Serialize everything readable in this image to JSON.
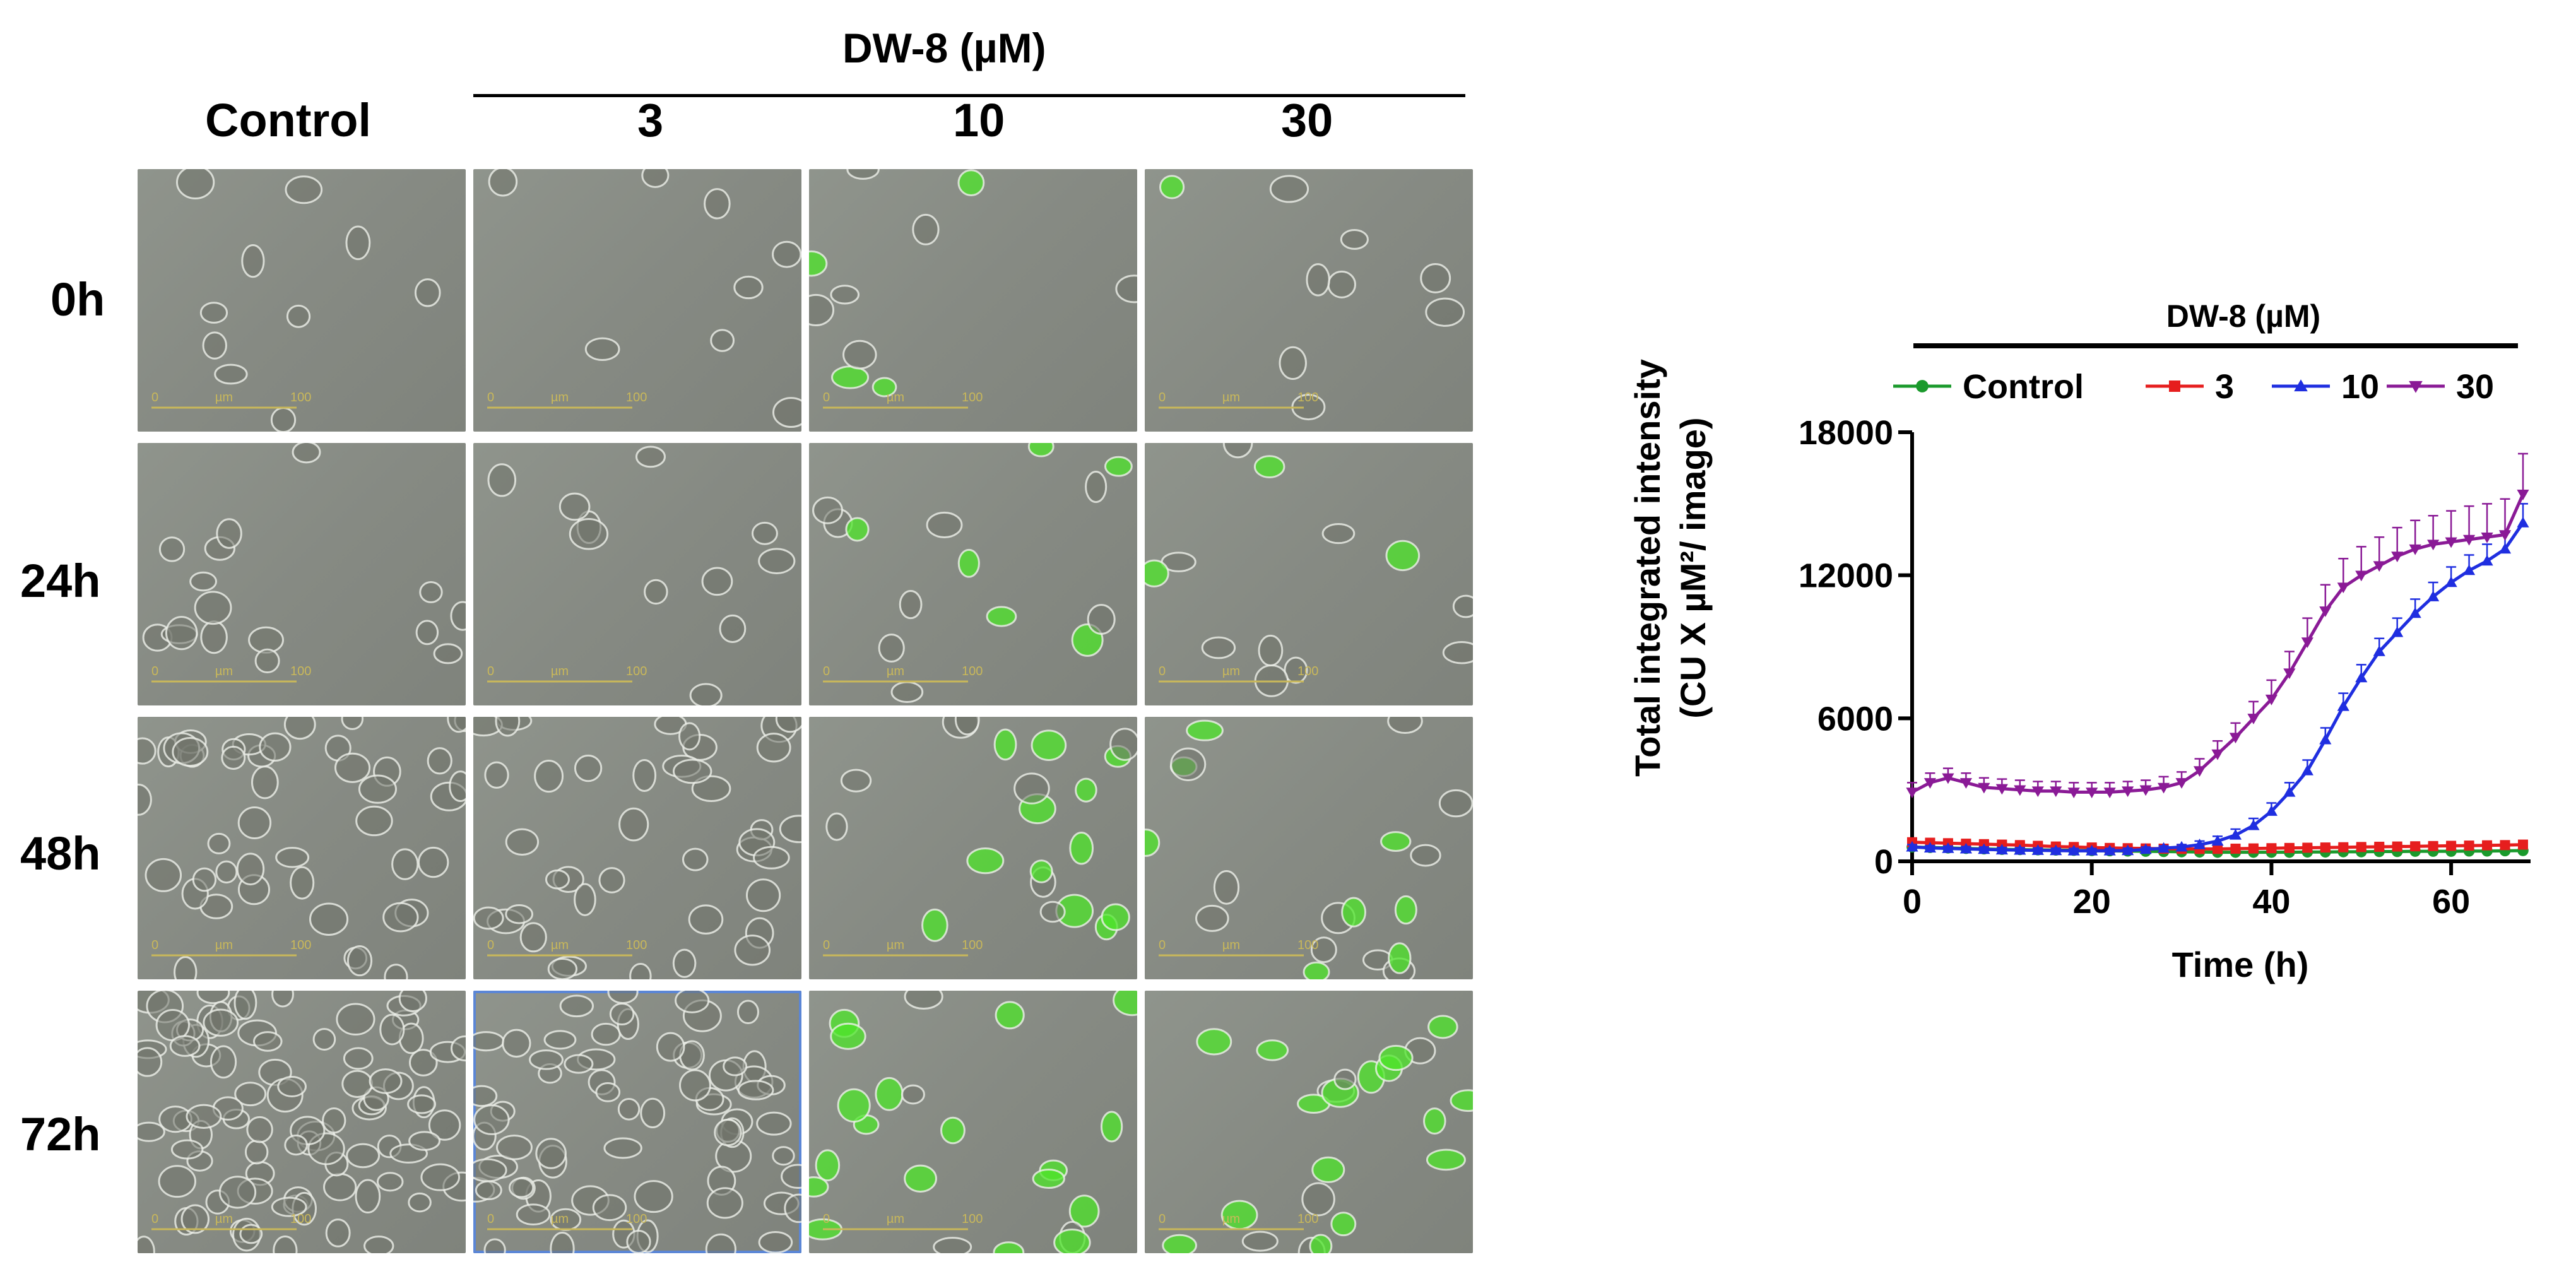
{
  "figure": {
    "treatment_header": "DW-8 (µM)",
    "column_labels": [
      "Control",
      "3",
      "10",
      "30"
    ],
    "row_labels": [
      "0h",
      "24h",
      "48h",
      "72h"
    ],
    "scale_bar": {
      "unit": "µm",
      "start": "0",
      "end": "100"
    },
    "selected_panel": {
      "row": "72h",
      "column": "3"
    },
    "colors": {
      "cell_fill": "#6f7369",
      "cell_outline": "#eef0ea",
      "fluorescence": "#4ee62a",
      "scale_bar": "#c9b85a",
      "selection": "#5b86d6"
    }
  },
  "chart_data": {
    "type": "line",
    "header": "DW-8 (µM)",
    "xlabel": "Time (h)",
    "ylabel_line1": "Total integrated intensity",
    "ylabel_line2": "(CU X µM²/ image)",
    "xlim": [
      0,
      68
    ],
    "ylim": [
      0,
      18000
    ],
    "xticks": [
      0,
      20,
      40,
      60
    ],
    "yticks": [
      0,
      6000,
      12000,
      18000
    ],
    "ytick_labels": [
      "0",
      "6000",
      "12000",
      "18000"
    ],
    "legend_position": "top",
    "x": [
      0,
      2,
      4,
      6,
      8,
      10,
      12,
      14,
      16,
      18,
      20,
      22,
      24,
      26,
      28,
      30,
      32,
      34,
      36,
      38,
      40,
      42,
      44,
      46,
      48,
      50,
      52,
      54,
      56,
      58,
      60,
      62,
      64,
      66,
      68
    ],
    "series": [
      {
        "name": "Control",
        "color": "#1a9a2c",
        "marker": "circle",
        "values": [
          600,
          580,
          560,
          540,
          520,
          500,
          490,
          480,
          470,
          460,
          450,
          440,
          430,
          420,
          410,
          400,
          390,
          380,
          380,
          380,
          380,
          380,
          390,
          390,
          400,
          400,
          410,
          410,
          420,
          420,
          420,
          430,
          430,
          440,
          450
        ],
        "err": [
          80,
          80,
          80,
          80,
          70,
          70,
          70,
          70,
          70,
          70,
          70,
          70,
          60,
          60,
          60,
          60,
          60,
          60,
          60,
          60,
          60,
          60,
          60,
          60,
          60,
          60,
          60,
          60,
          60,
          60,
          60,
          60,
          60,
          60,
          60
        ]
      },
      {
        "name": "3",
        "color": "#e61e1e",
        "marker": "square",
        "values": [
          800,
          780,
          760,
          740,
          720,
          700,
          680,
          650,
          620,
          600,
          580,
          560,
          550,
          540,
          530,
          520,
          520,
          520,
          530,
          540,
          550,
          560,
          570,
          580,
          590,
          600,
          610,
          620,
          630,
          640,
          650,
          660,
          670,
          680,
          700
        ],
        "err": [
          120,
          120,
          110,
          110,
          110,
          100,
          100,
          100,
          100,
          100,
          100,
          100,
          100,
          100,
          100,
          100,
          100,
          100,
          100,
          100,
          100,
          100,
          100,
          100,
          100,
          100,
          100,
          100,
          100,
          100,
          100,
          100,
          100,
          100,
          120
        ]
      },
      {
        "name": "10",
        "color": "#1f2ee0",
        "marker": "triangle",
        "values": [
          600,
          560,
          540,
          520,
          500,
          480,
          470,
          460,
          450,
          440,
          440,
          440,
          450,
          500,
          550,
          600,
          700,
          850,
          1100,
          1500,
          2100,
          2900,
          3800,
          5100,
          6500,
          7700,
          8800,
          9600,
          10400,
          11100,
          11700,
          12200,
          12600,
          13100,
          14200
        ],
        "err": [
          100,
          100,
          100,
          100,
          100,
          100,
          100,
          100,
          100,
          100,
          100,
          100,
          100,
          100,
          100,
          100,
          150,
          200,
          250,
          300,
          350,
          400,
          450,
          500,
          550,
          550,
          550,
          600,
          600,
          600,
          650,
          650,
          700,
          700,
          800
        ]
      },
      {
        "name": "30",
        "color": "#8a1a96",
        "marker": "down-triangle",
        "values": [
          2900,
          3300,
          3500,
          3300,
          3100,
          3050,
          3000,
          2950,
          2950,
          2900,
          2900,
          2900,
          2950,
          3000,
          3100,
          3300,
          3800,
          4500,
          5200,
          6000,
          6800,
          7900,
          9200,
          10500,
          11500,
          12000,
          12400,
          12800,
          13100,
          13300,
          13400,
          13500,
          13600,
          13700,
          15400
        ],
        "err": [
          400,
          400,
          400,
          400,
          400,
          400,
          400,
          400,
          400,
          400,
          400,
          400,
          400,
          400,
          450,
          450,
          500,
          550,
          600,
          700,
          800,
          900,
          1000,
          1100,
          1200,
          1200,
          1200,
          1200,
          1200,
          1200,
          1300,
          1400,
          1400,
          1500,
          1700
        ]
      }
    ]
  }
}
